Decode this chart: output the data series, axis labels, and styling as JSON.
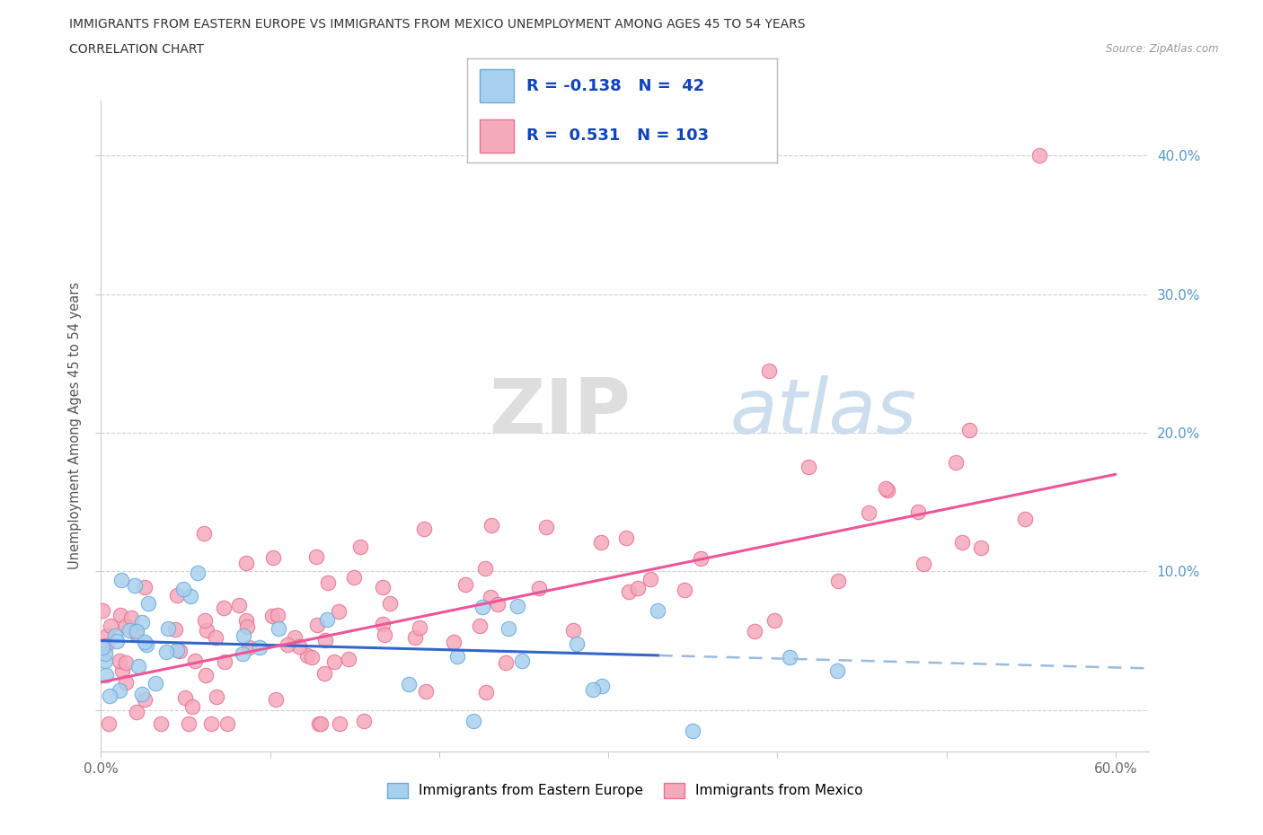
{
  "title_line1": "IMMIGRANTS FROM EASTERN EUROPE VS IMMIGRANTS FROM MEXICO UNEMPLOYMENT AMONG AGES 45 TO 54 YEARS",
  "title_line2": "CORRELATION CHART",
  "source_text": "Source: ZipAtlas.com",
  "ylabel": "Unemployment Among Ages 45 to 54 years",
  "xlim": [
    0.0,
    0.62
  ],
  "ylim": [
    -0.03,
    0.44
  ],
  "blue_R": -0.138,
  "blue_N": 42,
  "pink_R": 0.531,
  "pink_N": 103,
  "blue_scatter_color": "#A8D0EE",
  "blue_scatter_edge": "#6BAAD8",
  "pink_scatter_color": "#F5AABB",
  "pink_scatter_edge": "#E87090",
  "blue_line_color": "#3366CC",
  "blue_dashed_color": "#99BBDD",
  "pink_line_color": "#EE5599",
  "legend_label_blue": "Immigrants from Eastern Europe",
  "legend_label_pink": "Immigrants from Mexico",
  "background_color": "#ffffff",
  "watermark_text": "ZIP",
  "watermark_text2": "atlas",
  "blue_trend_start_y": 0.05,
  "blue_trend_end_y": 0.03,
  "pink_trend_start_y": 0.02,
  "pink_trend_end_y": 0.17,
  "blue_line_solid_end_x": 0.33,
  "blue_line_dashed_start_x": 0.33
}
